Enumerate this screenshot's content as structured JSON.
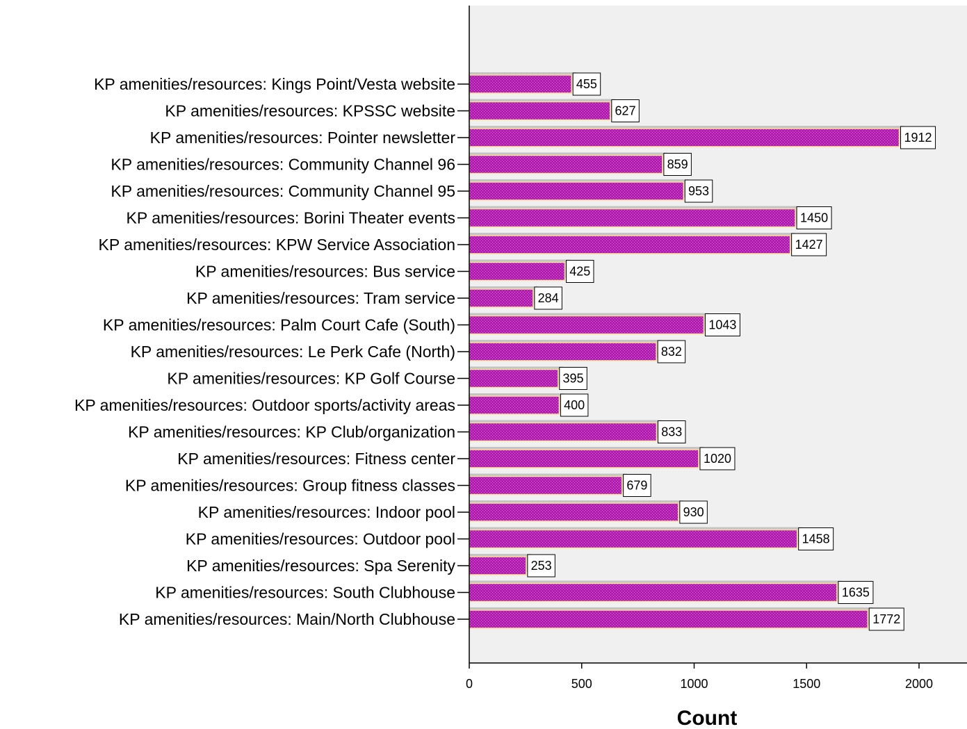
{
  "chart_data": {
    "type": "bar",
    "orientation": "horizontal",
    "categories": [
      "KP amenities/resources: Kings Point/Vesta website",
      "KP amenities/resources: KPSSC website",
      "KP amenities/resources: Pointer newsletter",
      "KP amenities/resources: Community Channel 96",
      "KP amenities/resources: Community Channel 95",
      "KP amenities/resources: Borini Theater events",
      "KP amenities/resources: KPW Service Association",
      "KP amenities/resources: Bus service",
      "KP amenities/resources: Tram service",
      "KP amenities/resources: Palm Court Cafe (South)",
      "KP amenities/resources: Le Perk Cafe (North)",
      "KP amenities/resources: KP Golf Course",
      "KP amenities/resources: Outdoor sports/activity areas",
      "KP amenities/resources: KP Club/organization",
      "KP amenities/resources: Fitness center",
      "KP amenities/resources: Group fitness classes",
      "KP amenities/resources: Indoor pool",
      "KP amenities/resources: Outdoor pool",
      "KP amenities/resources: Spa Serenity",
      "KP amenities/resources: South Clubhouse",
      "KP amenities/resources:  Main/North Clubhouse"
    ],
    "values": [
      455,
      627,
      1912,
      859,
      953,
      1450,
      1427,
      425,
      284,
      1043,
      832,
      395,
      400,
      833,
      1020,
      679,
      930,
      1458,
      253,
      1635,
      1772
    ],
    "data_labels": [
      "455",
      "627",
      "1912",
      "859",
      "953",
      "1450",
      "1427",
      "425",
      "284",
      "1043",
      "832",
      "395",
      "400",
      "833",
      "1020",
      "679",
      "930",
      "1458",
      "253",
      "1635",
      "1772"
    ],
    "xlabel": "Count",
    "ylabel": "",
    "xlim": [
      0,
      2200
    ],
    "xticks": [
      0,
      500,
      1000,
      1500,
      2000
    ],
    "xtick_labels": [
      "0",
      "500",
      "1000",
      "1500",
      "2000"
    ],
    "grid": false,
    "colors": {
      "bar": "#b01eb0",
      "bar_pattern": "#e070e0",
      "bar_edge": "#ffe09a",
      "shadow": "#c4c4c4",
      "plot_background": "#f0f0f0",
      "axis": "#000000"
    }
  }
}
